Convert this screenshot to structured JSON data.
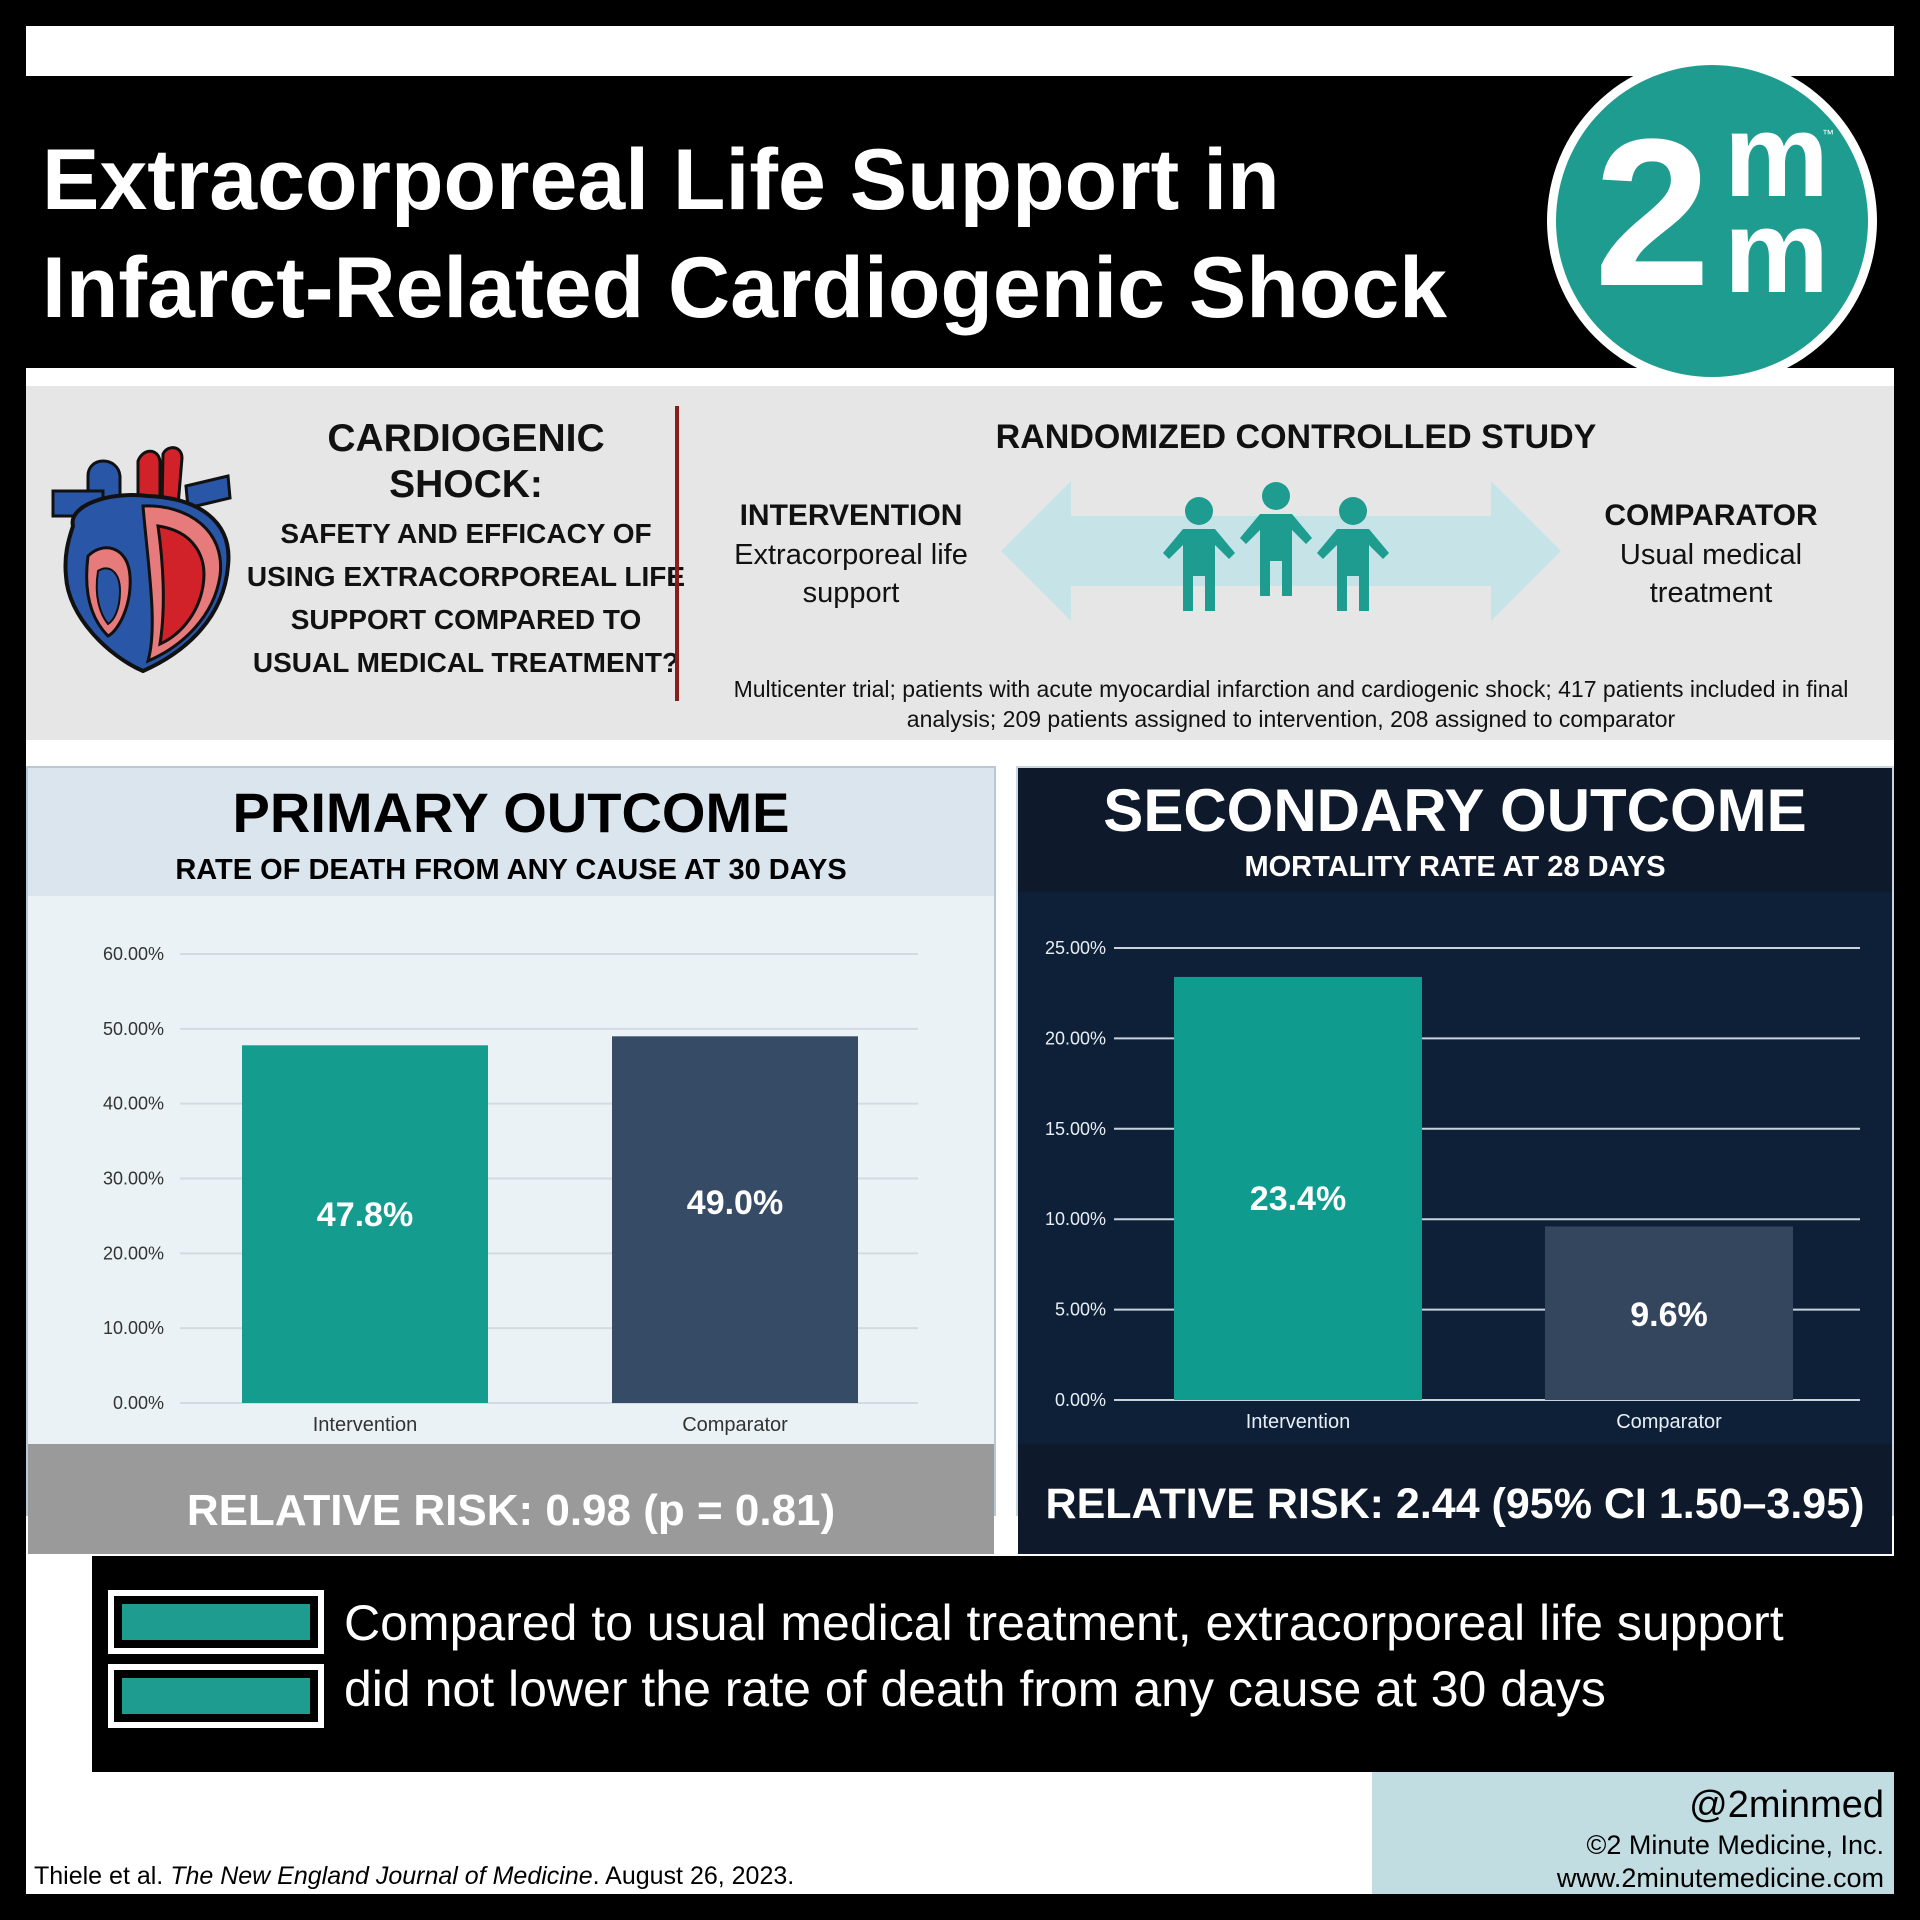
{
  "title": {
    "line1": "Extracorporeal Life Support in",
    "line2": "Infarct-Related Cardiogenic Shock"
  },
  "logo": {
    "numeral": "2",
    "m_top": "m",
    "m_bottom": "m",
    "tm": "™"
  },
  "question": {
    "heading_line1": "CARDIOGENIC",
    "heading_line2": "SHOCK:",
    "body": "SAFETY AND EFFICACY OF USING EXTRACORPOREAL LIFE SUPPORT COMPARED TO USUAL MEDICAL TREATMENT?"
  },
  "study": {
    "design": "RANDOMIZED CONTROLLED STUDY",
    "intervention_label": "INTERVENTION",
    "intervention_desc": "Extracorporeal life support",
    "comparator_label": "COMPARATOR",
    "comparator_desc": "Usual medical treatment",
    "description": "Multicenter trial; patients with acute myocardial infarction and cardiogenic shock; 417 patients included in final analysis; 209 patients assigned to intervention, 208 assigned to comparator"
  },
  "primary": {
    "title": "PRIMARY OUTCOME",
    "subtitle": "RATE OF DEATH FROM ANY CAUSE AT 30 DAYS",
    "relative_risk": "RELATIVE RISK: 0.98 (p = 0.81)"
  },
  "secondary": {
    "title": "SECONDARY OUTCOME",
    "subtitle": "MORTALITY RATE AT 28 DAYS",
    "relative_risk": "RELATIVE RISK: 2.44 (95% CI 1.50–3.95)"
  },
  "chart_data": [
    {
      "type": "bar",
      "title": "PRIMARY OUTCOME",
      "subtitle": "RATE OF DEATH FROM ANY CAUSE AT 30 DAYS",
      "categories": [
        "Intervention",
        "Comparator"
      ],
      "values": [
        47.8,
        49.0
      ],
      "value_labels": [
        "47.8%",
        "49.0%"
      ],
      "bar_colors": [
        "#149c8e",
        "#364b66"
      ],
      "y_ticks": [
        "0.00%",
        "10.00%",
        "20.00%",
        "30.00%",
        "40.00%",
        "50.00%",
        "60.00%"
      ],
      "ylim": [
        0,
        60
      ],
      "grid": true,
      "xlabel": "",
      "ylabel": ""
    },
    {
      "type": "bar",
      "title": "SECONDARY OUTCOME",
      "subtitle": "MORTALITY RATE AT 28 DAYS",
      "categories": [
        "Intervention",
        "Comparator"
      ],
      "values": [
        23.4,
        9.6
      ],
      "value_labels": [
        "23.4%",
        "9.6%"
      ],
      "bar_colors": [
        "#0f9b8e",
        "#34465e"
      ],
      "y_ticks": [
        "0.00%",
        "5.00%",
        "10.00%",
        "15.00%",
        "20.00%",
        "25.00%"
      ],
      "ylim": [
        0,
        25
      ],
      "grid": true,
      "xlabel": "",
      "ylabel": ""
    }
  ],
  "conclusion": {
    "line1": "Compared to usual medical treatment, extracorporeal life support",
    "line2": "did not lower the rate of death from any cause at 30 days"
  },
  "citation": {
    "authors": "Thiele et al. ",
    "journal": "The New England Journal of Medicine",
    "date": ". August 26, 2023."
  },
  "footer": {
    "handle": "@2minmed",
    "copyright": "©2 Minute Medicine, Inc.",
    "website": "www.2minutemedicine.com"
  },
  "colors": {
    "teal": "#1d9c8f",
    "navy": "#0e2038",
    "slate": "#364b66",
    "divider_red": "#8a1c1c"
  }
}
